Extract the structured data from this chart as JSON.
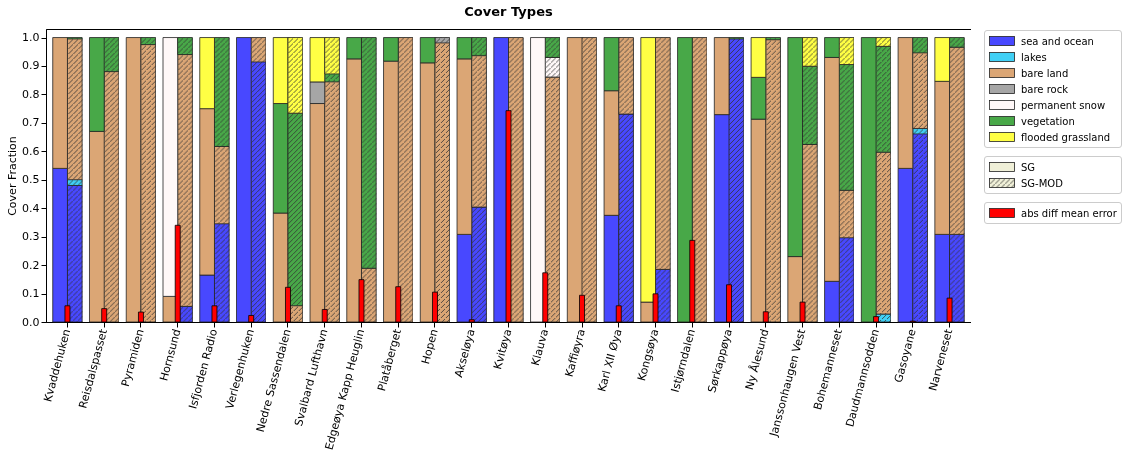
{
  "chart_data": {
    "type": "bar",
    "title": "Cover Types",
    "ylabel": "Cover Fraction",
    "stacked": true,
    "legend": "right",
    "grid": false,
    "categories": [
      null,
      "Kvaddehuken",
      null,
      null,
      "Reisdalspasset",
      null,
      null,
      "Pyramiden",
      null,
      null,
      "Hornsund",
      null,
      null,
      "Isfjorden Radio",
      null,
      null,
      "Verlegenhuken",
      null,
      null,
      "Nedre Sassendalen",
      null,
      null,
      "Svalbard Lufthavn",
      null,
      null,
      "Edgeøya Kapp Heuglin",
      null,
      null,
      "Platåberget",
      null,
      null,
      "Hopen",
      null,
      null,
      "Akseløya",
      null,
      null,
      "Kvitøya",
      null,
      null,
      "Klauva",
      null,
      null,
      "Kaffiøyra",
      null,
      null,
      "Karl XII Øya",
      null,
      null,
      "Kongsøya",
      null,
      null,
      "Istjørndalen",
      null,
      null,
      "Sørkappøya",
      null,
      null,
      "Ny Ålesund",
      null,
      null,
      "Janssonhaugen Vest",
      null,
      null,
      "Bohemanneset",
      null,
      null,
      "Daudmannsodden",
      null,
      null,
      "Gasoyane",
      null,
      null,
      "Narveneset",
      null
    ],
    "ylim": [
      0,
      1.03
    ],
    "yticks": [
      {
        "value": 0,
        "label": "0.0"
      },
      {
        "value": 0.1,
        "label": "0.1"
      },
      {
        "value": 0.2,
        "label": "0.2"
      },
      {
        "value": 0.3,
        "label": "0.3"
      },
      {
        "value": 0.4,
        "label": "0.4"
      },
      {
        "value": 0.5,
        "label": "0.5"
      },
      {
        "value": 0.6,
        "label": "0.6"
      },
      {
        "value": 0.7,
        "label": "0.7"
      },
      {
        "value": 0.8,
        "label": "0.8"
      },
      {
        "value": 0.9,
        "label": "0.9"
      },
      {
        "value": 1,
        "label": "1.0"
      }
    ],
    "annotations": [
      "SG",
      "SG-MOD"
    ],
    "series": [
      {
        "name": "sea and ocean",
        "color": "#4848ff",
        "values": [
          0.54,
          null,
          0.48,
          null,
          null,
          null,
          null,
          null,
          null,
          null,
          null,
          0.055,
          0.165,
          null,
          0.345,
          1.0,
          null,
          0.914,
          null,
          null,
          null,
          null,
          null,
          null,
          null,
          null,
          null,
          null,
          null,
          null,
          null,
          null,
          null,
          0.308,
          null,
          0.404,
          1.0,
          null,
          null,
          null,
          null,
          null,
          null,
          null,
          null,
          0.375,
          null,
          0.731,
          null,
          null,
          0.185,
          null,
          null,
          null,
          0.729,
          null,
          0.995,
          null,
          null,
          null,
          null,
          null,
          null,
          0.143,
          null,
          0.296,
          null,
          null,
          null,
          0.54,
          null,
          0.661,
          0.308,
          null,
          0.308
        ]
      },
      {
        "name": "lakes",
        "color": "#40d0f5",
        "values": [
          null,
          null,
          0.02,
          null,
          null,
          null,
          null,
          null,
          null,
          null,
          null,
          null,
          null,
          null,
          null,
          null,
          null,
          null,
          null,
          null,
          null,
          null,
          null,
          null,
          null,
          null,
          null,
          null,
          null,
          null,
          null,
          null,
          null,
          null,
          null,
          null,
          null,
          null,
          null,
          null,
          null,
          null,
          null,
          null,
          null,
          null,
          null,
          null,
          null,
          null,
          null,
          null,
          null,
          null,
          null,
          null,
          null,
          null,
          null,
          null,
          null,
          null,
          null,
          null,
          null,
          null,
          null,
          null,
          0.028,
          null,
          null,
          0.019,
          null,
          null,
          null
        ]
      },
      {
        "name": "bare land",
        "color": "#dba675",
        "values": [
          0.46,
          null,
          0.495,
          0.67,
          null,
          0.88,
          1.0,
          null,
          0.975,
          0.09,
          null,
          0.885,
          0.585,
          null,
          0.272,
          null,
          null,
          0.086,
          0.383,
          null,
          0.057,
          0.768,
          null,
          0.844,
          0.925,
          null,
          0.189,
          0.917,
          null,
          1.0,
          0.911,
          null,
          0.981,
          0.617,
          null,
          0.532,
          null,
          null,
          1.0,
          null,
          null,
          0.861,
          1.0,
          null,
          1.0,
          0.438,
          null,
          0.269,
          0.07,
          null,
          0.815,
          null,
          null,
          1.0,
          0.271,
          null,
          null,
          0.713,
          null,
          0.992,
          0.23,
          null,
          0.624,
          0.787,
          null,
          0.167,
          null,
          null,
          0.569,
          0.46,
          null,
          0.266,
          0.538,
          null,
          0.658
        ]
      },
      {
        "name": "bare rock",
        "color": "#a6a6a6",
        "values": [
          null,
          null,
          null,
          null,
          null,
          null,
          null,
          null,
          null,
          null,
          null,
          null,
          null,
          null,
          null,
          null,
          null,
          null,
          null,
          null,
          null,
          0.076,
          null,
          null,
          null,
          null,
          null,
          null,
          null,
          null,
          null,
          null,
          0.019,
          null,
          null,
          null,
          null,
          null,
          null,
          null,
          null,
          null,
          null,
          null,
          null,
          null,
          null,
          null,
          null,
          null,
          null,
          null,
          null,
          null,
          null,
          null,
          null,
          null,
          null,
          null,
          null,
          null,
          null,
          null,
          null,
          null,
          null,
          null,
          null,
          null,
          null,
          null,
          null,
          null,
          null
        ]
      },
      {
        "name": "permanent snow",
        "color": "#fff8f8",
        "values": [
          null,
          null,
          null,
          null,
          null,
          null,
          null,
          null,
          null,
          0.91,
          null,
          null,
          null,
          null,
          null,
          null,
          null,
          null,
          null,
          null,
          null,
          null,
          null,
          null,
          null,
          null,
          null,
          null,
          null,
          null,
          null,
          null,
          null,
          null,
          null,
          null,
          null,
          null,
          null,
          1.0,
          null,
          0.069,
          null,
          null,
          null,
          null,
          null,
          null,
          null,
          null,
          null,
          null,
          null,
          null,
          null,
          null,
          null,
          null,
          null,
          null,
          null,
          null,
          null,
          null,
          null,
          null,
          null,
          null,
          null,
          null,
          null,
          null,
          null,
          null,
          null
        ]
      },
      {
        "name": "vegetation",
        "color": "#48a848",
        "values": [
          null,
          null,
          0.005,
          0.33,
          null,
          0.12,
          null,
          null,
          0.025,
          null,
          null,
          0.06,
          null,
          null,
          0.383,
          null,
          null,
          null,
          0.385,
          null,
          0.677,
          null,
          null,
          0.028,
          0.075,
          null,
          0.811,
          0.083,
          null,
          null,
          0.089,
          null,
          null,
          0.075,
          null,
          0.064,
          null,
          null,
          null,
          null,
          null,
          0.07,
          null,
          null,
          null,
          0.187,
          null,
          null,
          null,
          null,
          null,
          1.0,
          null,
          null,
          null,
          null,
          0.005,
          0.147,
          null,
          0.008,
          0.77,
          null,
          0.275,
          0.07,
          null,
          0.442,
          1.0,
          null,
          0.372,
          null,
          null,
          0.054,
          null,
          null,
          0.034
        ]
      },
      {
        "name": "flooded grassland",
        "color": "#ffff44",
        "values": [
          null,
          null,
          null,
          null,
          null,
          null,
          null,
          null,
          null,
          null,
          null,
          null,
          0.25,
          null,
          null,
          null,
          null,
          null,
          0.232,
          null,
          0.266,
          0.156,
          null,
          0.128,
          null,
          null,
          null,
          null,
          null,
          null,
          null,
          null,
          null,
          null,
          null,
          null,
          null,
          null,
          null,
          null,
          null,
          null,
          null,
          null,
          null,
          null,
          null,
          null,
          0.93,
          null,
          null,
          null,
          null,
          null,
          null,
          null,
          null,
          0.14,
          null,
          null,
          null,
          null,
          0.101,
          null,
          null,
          0.095,
          null,
          null,
          0.031,
          null,
          null,
          null,
          0.154,
          null,
          null
        ]
      },
      {
        "name": "abs diff mean error",
        "color": "#ff0000",
        "values": [
          null,
          0.057,
          null,
          null,
          0.047,
          null,
          null,
          0.035,
          null,
          null,
          0.34,
          null,
          null,
          0.057,
          null,
          null,
          0.023,
          null,
          null,
          0.122,
          null,
          null,
          0.044,
          null,
          null,
          0.149,
          null,
          null,
          0.124,
          null,
          null,
          0.105,
          null,
          null,
          0.008,
          null,
          null,
          0.743,
          null,
          null,
          0.173,
          null,
          null,
          0.094,
          null,
          null,
          0.057,
          null,
          null,
          0.099,
          null,
          null,
          0.287,
          null,
          null,
          0.131,
          null,
          null,
          0.036,
          null,
          null,
          0.07,
          null,
          null,
          null,
          null,
          null,
          0.019,
          null,
          null,
          0.003,
          null,
          null,
          0.084,
          null
        ]
      }
    ]
  }
}
